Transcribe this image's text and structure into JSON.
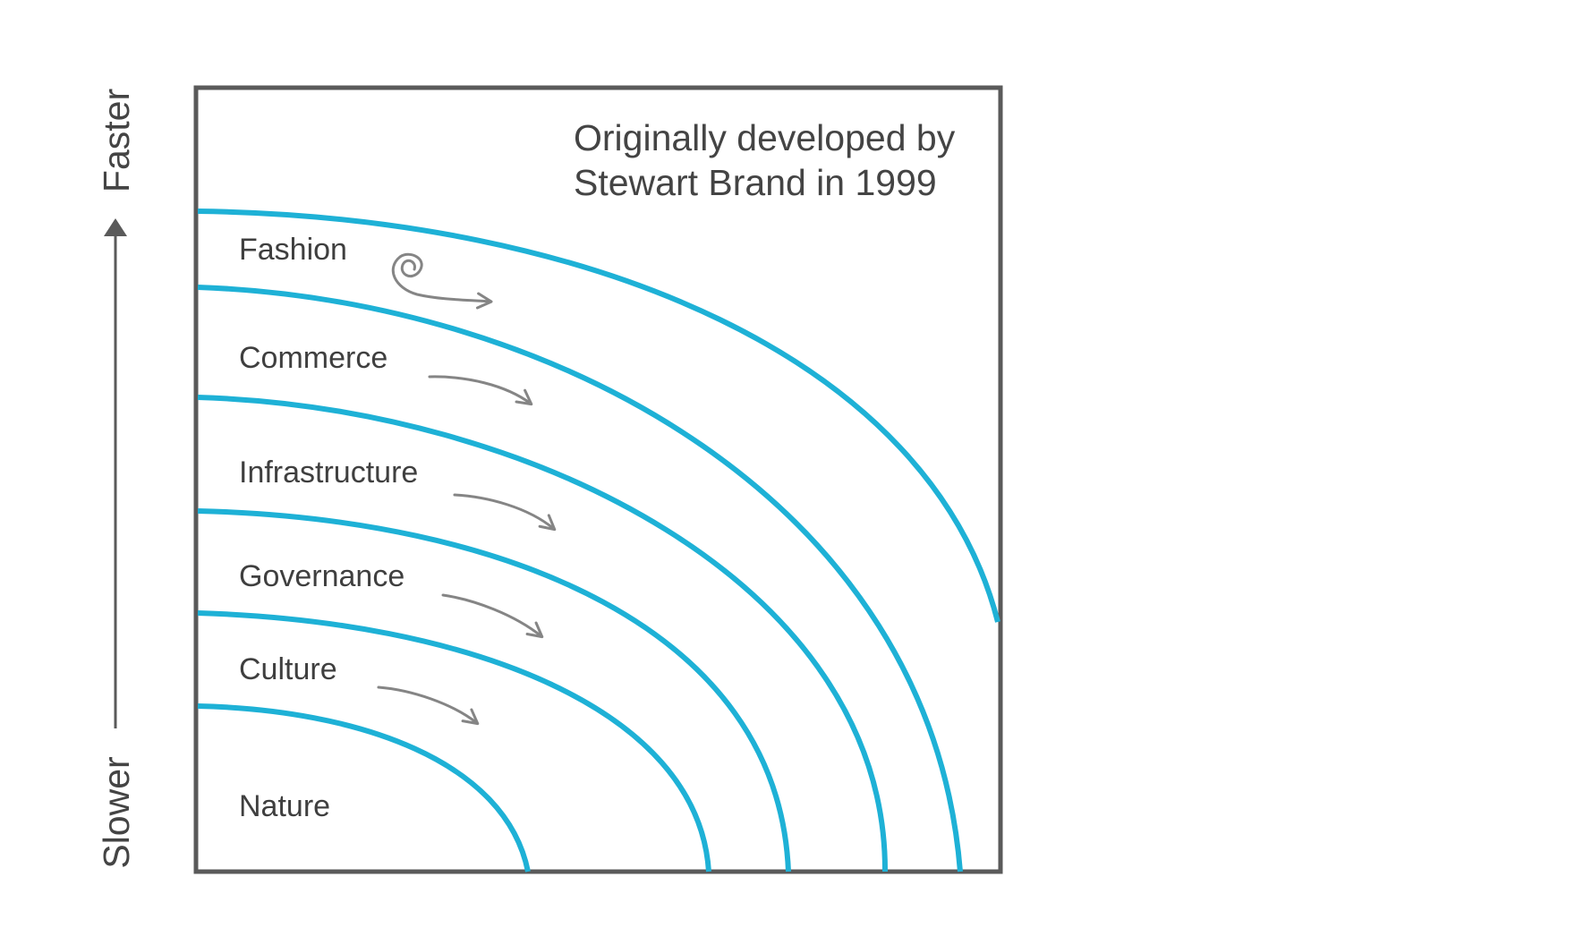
{
  "note": {
    "line1": "Originally developed by",
    "line2": "Stewart Brand in 1999"
  },
  "axis": {
    "top_label": "Faster",
    "bottom_label": "Slower"
  },
  "layers": [
    {
      "label": "Fashion"
    },
    {
      "label": "Commerce"
    },
    {
      "label": "Infrastructure"
    },
    {
      "label": "Governance"
    },
    {
      "label": "Culture"
    },
    {
      "label": "Nature"
    }
  ],
  "colors": {
    "curve": "#1eb1d6",
    "frame": "#5a5a5a",
    "arrow": "#858585",
    "text": "#3f3f3f"
  }
}
